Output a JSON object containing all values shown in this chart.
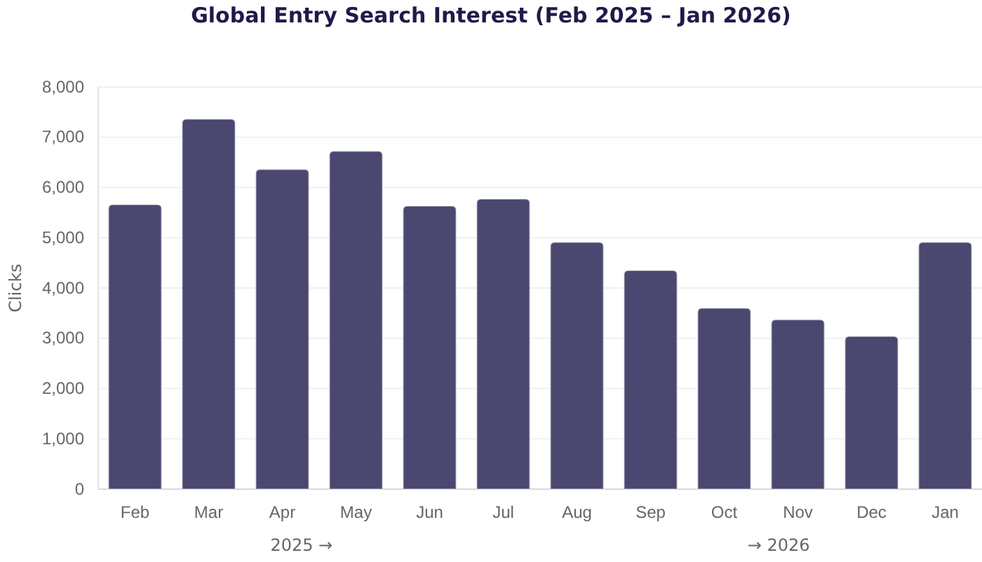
{
  "chart_data": {
    "type": "bar",
    "title": "Global Entry Search Interest (Feb 2025 – Jan 2026)",
    "ylabel": "Clicks",
    "categories": [
      "Feb",
      "Mar",
      "Apr",
      "May",
      "Jun",
      "Jul",
      "Aug",
      "Sep",
      "Oct",
      "Nov",
      "Dec",
      "Jan"
    ],
    "values": [
      5660,
      7360,
      6360,
      6720,
      5630,
      5770,
      4910,
      4350,
      3600,
      3370,
      3040,
      4910
    ],
    "color": "#4a4870",
    "ylim": [
      0,
      8000
    ],
    "yticks": [
      {
        "value": 0,
        "label": "0"
      },
      {
        "value": 1000,
        "label": "1,000"
      },
      {
        "value": 2000,
        "label": "2,000"
      },
      {
        "value": 3000,
        "label": "3,000"
      },
      {
        "value": 4000,
        "label": "4,000"
      },
      {
        "value": 5000,
        "label": "5,000"
      },
      {
        "value": 6000,
        "label": "6,000"
      },
      {
        "value": 7000,
        "label": "7,000"
      },
      {
        "value": 8000,
        "label": "8,000"
      }
    ],
    "grid": "y",
    "annotations": [
      "2025 →",
      "→ 2026"
    ]
  }
}
